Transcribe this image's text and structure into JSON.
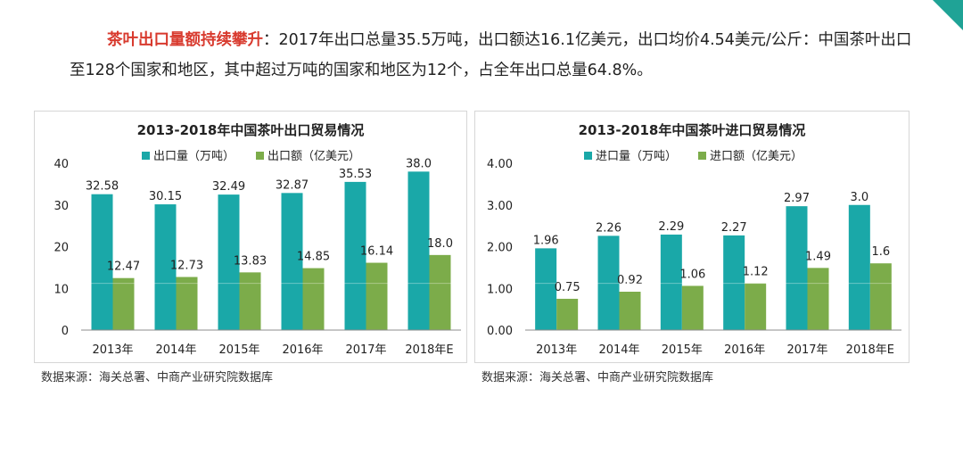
{
  "intro": {
    "highlight": "茶叶出口量额持续攀升",
    "text": "：2017年出口总量35.5万吨，出口额达16.1亿美元，出口均价4.54美元/公斤：中国茶叶出口至128个国家和地区，其中超过万吨的国家和地区为12个，占全年出口总量64.8%。"
  },
  "colors": {
    "teal": "#1aa8a8",
    "green": "#7cac4a",
    "highlight": "#d83a2e",
    "corner": "#1fa396"
  },
  "chart_data": [
    {
      "id": "export",
      "type": "bar",
      "title": "2013-2018年中国茶叶出口贸易情况",
      "categories": [
        "2013年",
        "2014年",
        "2015年",
        "2016年",
        "2017年",
        "2018年E"
      ],
      "series": [
        {
          "name": "出口量（万吨）",
          "values": [
            32.58,
            30.15,
            32.49,
            32.87,
            35.53,
            38.0
          ],
          "labels": [
            "32.58",
            "30.15",
            "32.49",
            "32.87",
            "35.53",
            "38.0"
          ]
        },
        {
          "name": "出口额（亿美元）",
          "values": [
            12.47,
            12.73,
            13.83,
            14.85,
            16.14,
            18.0
          ],
          "labels": [
            "12.47",
            "12.73",
            "13.83",
            "14.85",
            "16.14",
            "18.0"
          ]
        }
      ],
      "ylim": [
        0,
        40
      ],
      "yticks": [
        "0",
        "10",
        "20",
        "30",
        "40"
      ],
      "xlabel": "",
      "ylabel": "",
      "legend_position": "top",
      "source": "数据来源：海关总署、中商产业研究院数据库"
    },
    {
      "id": "import",
      "type": "bar",
      "title": "2013-2018年中国茶叶进口贸易情况",
      "categories": [
        "2013年",
        "2014年",
        "2015年",
        "2016年",
        "2017年",
        "2018年E"
      ],
      "series": [
        {
          "name": "进口量（万吨）",
          "values": [
            1.96,
            2.26,
            2.29,
            2.27,
            2.97,
            3.0
          ],
          "labels": [
            "1.96",
            "2.26",
            "2.29",
            "2.27",
            "2.97",
            "3.0"
          ]
        },
        {
          "name": "进口额（亿美元）",
          "values": [
            0.75,
            0.92,
            1.06,
            1.12,
            1.49,
            1.6
          ],
          "labels": [
            "0.75",
            "0.92",
            "1.06",
            "1.12",
            "1.49",
            "1.6"
          ]
        }
      ],
      "ylim": [
        0,
        4
      ],
      "yticks": [
        "0.00",
        "1.00",
        "2.00",
        "3.00",
        "4.00"
      ],
      "xlabel": "",
      "ylabel": "",
      "legend_position": "top",
      "source": "数据来源：海关总署、中商产业研究院数据库"
    }
  ]
}
